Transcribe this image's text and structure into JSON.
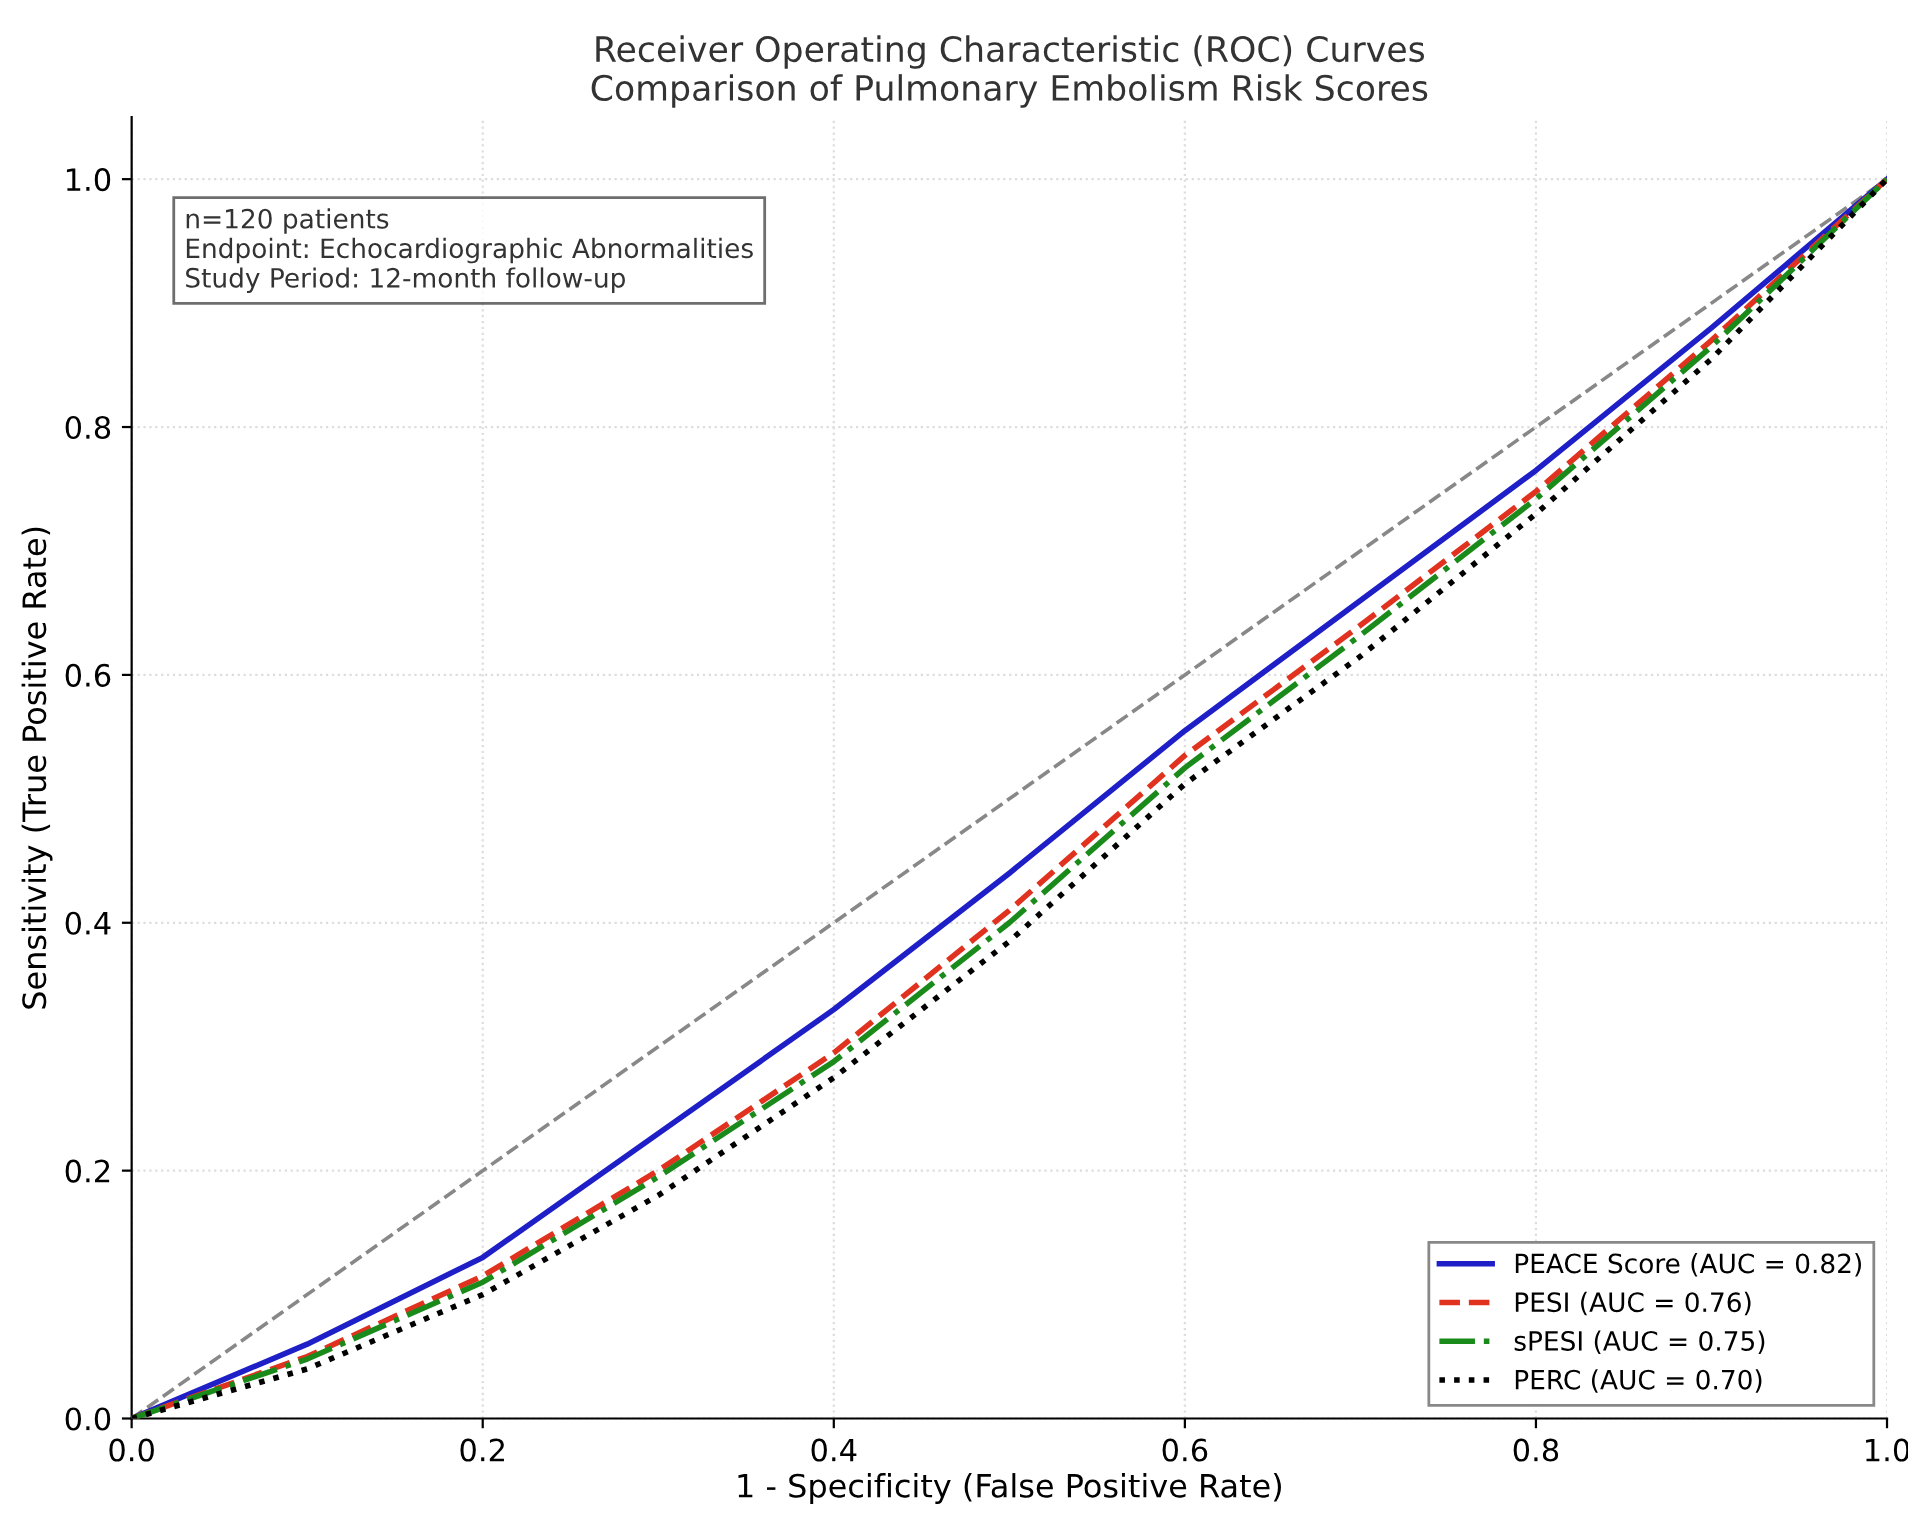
{
  "chart_data": {
    "type": "line",
    "title": "Receiver Operating Characteristic (ROC) Curves\nComparison of Pulmonary Embolism Risk Scores",
    "xlabel": "1 - Specificity (False Positive Rate)",
    "ylabel": "Sensitivity (True Positive Rate)",
    "x": [
      0,
      0.1,
      0.2,
      0.3,
      0.4,
      0.5,
      0.6,
      0.7,
      0.8,
      0.9,
      1.0
    ],
    "series": [
      {
        "name": "PEACE Score (AUC = 0.82)",
        "color": "#1f1fc8",
        "line_style": "solid",
        "values": [
          0,
          0.06,
          0.13,
          0.23,
          0.33,
          0.44,
          0.555,
          0.66,
          0.765,
          0.88,
          1.0
        ]
      },
      {
        "name": "PESI (AUC = 0.76)",
        "color": "#e0321e",
        "line_style": "dashed",
        "values": [
          0,
          0.05,
          0.115,
          0.2,
          0.295,
          0.41,
          0.535,
          0.64,
          0.748,
          0.87,
          1.0
        ]
      },
      {
        "name": "sPESI (AUC = 0.75)",
        "color": "#1a8a1a",
        "line_style": "dashdot",
        "values": [
          0,
          0.048,
          0.11,
          0.195,
          0.288,
          0.4,
          0.525,
          0.632,
          0.742,
          0.865,
          1.0
        ]
      },
      {
        "name": "PERC (AUC = 0.70)",
        "color": "#000000",
        "line_style": "dotted",
        "values": [
          0,
          0.04,
          0.1,
          0.18,
          0.275,
          0.385,
          0.512,
          0.615,
          0.73,
          0.855,
          1.0
        ]
      },
      {
        "color": "#888888",
        "line_style": "dashed",
        "x": [
          0,
          1
        ],
        "values": [
          0,
          1
        ]
      }
    ],
    "xlim": [
      0,
      1
    ],
    "ylim": [
      0,
      1.05
    ],
    "xticks": [
      {
        "value": 0,
        "label": "0.0"
      },
      0.2,
      0.4,
      0.6,
      0.8,
      {
        "value": 1,
        "label": "1.0"
      }
    ],
    "yticks": [
      {
        "value": 0,
        "label": "0.0"
      },
      0.2,
      0.4,
      0.6,
      0.8,
      {
        "value": 1,
        "label": "1.0"
      }
    ],
    "grid": true,
    "legend": "bottom right",
    "annotations": [
      "n=120 patients\nEndpoint: Echocardiographic Abnormalities\nStudy Period: 12-month follow-up"
    ]
  }
}
